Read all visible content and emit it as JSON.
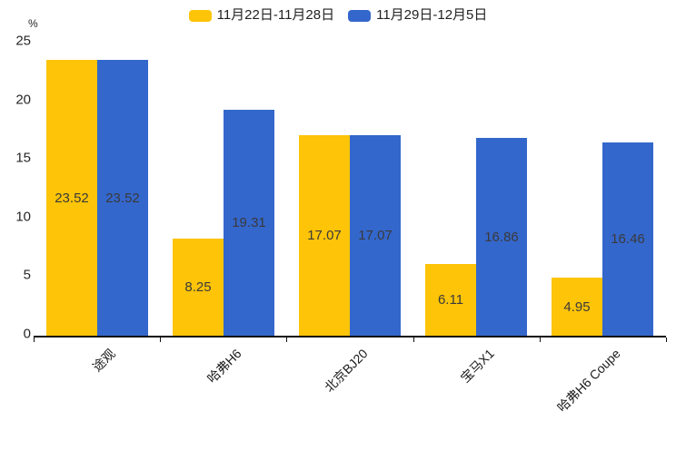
{
  "chart_data": {
    "type": "bar",
    "title": "",
    "ylabel": "%",
    "xlabel": "",
    "categories": [
      "途观",
      "哈弗H6",
      "北京BJ20",
      "宝马X1",
      "哈弗H6 Coupe"
    ],
    "series": [
      {
        "name": "11月22日-11月28日",
        "color": "#FDC408",
        "values": [
          23.52,
          8.25,
          17.07,
          6.11,
          4.95
        ]
      },
      {
        "name": "11月29日-12月5日",
        "color": "#3467CC",
        "values": [
          23.52,
          19.31,
          17.07,
          16.86,
          16.46
        ]
      }
    ],
    "ylim": [
      0,
      25
    ],
    "yticks": [
      0,
      5,
      10,
      15,
      20,
      25
    ],
    "grid": false,
    "legend_position": "top",
    "bar_labels": true,
    "bar_label_color": "#3a3a3a",
    "axis_color": "#111111",
    "tick_label_color": "#262626"
  }
}
